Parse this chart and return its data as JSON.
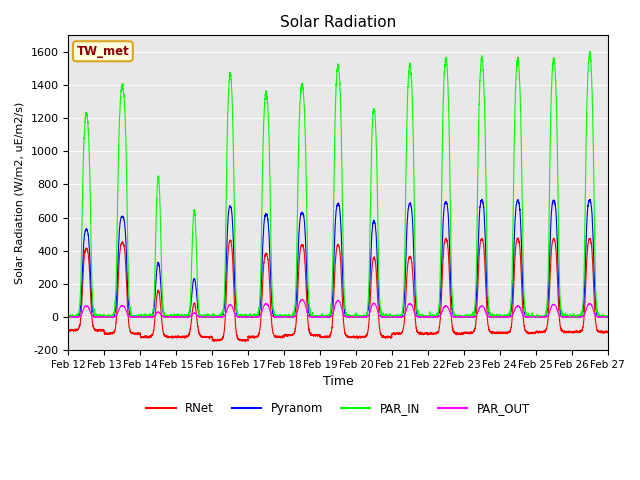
{
  "title": "Solar Radiation",
  "ylabel": "Solar Radiation (W/m2, uE/m2/s)",
  "xlabel": "Time",
  "ylim": [
    -200,
    1700
  ],
  "yticks": [
    -200,
    0,
    200,
    400,
    600,
    800,
    1000,
    1200,
    1400,
    1600
  ],
  "site_label": "TW_met",
  "n_days": 15,
  "pts_per_day": 288,
  "background_color": "#e8e8e8",
  "legend": [
    {
      "label": "RNet",
      "color": "#ff0000"
    },
    {
      "label": "Pyranom",
      "color": "#0000ff"
    },
    {
      "label": "PAR_IN",
      "color": "#00ff00"
    },
    {
      "label": "PAR_OUT",
      "color": "#ff00ff"
    }
  ],
  "xtick_labels": [
    "Feb 12",
    "Feb 13",
    "Feb 14",
    "Feb 15",
    "Feb 16",
    "Feb 17",
    "Feb 18",
    "Feb 19",
    "Feb 20",
    "Feb 21",
    "Feb 22",
    "Feb 23",
    "Feb 24",
    "Feb 25",
    "Feb 26",
    "Feb 27"
  ],
  "par_in_peaks": [
    1230,
    1400,
    850,
    640,
    1470,
    1360,
    1405,
    1520,
    1260,
    1520,
    1560,
    1560,
    1555,
    1560,
    1590
  ],
  "pyranom_peaks": [
    540,
    615,
    360,
    260,
    690,
    635,
    640,
    700,
    600,
    700,
    710,
    720,
    720,
    720,
    720
  ],
  "rnet_peaks": [
    430,
    460,
    200,
    120,
    490,
    400,
    450,
    455,
    385,
    380,
    490,
    490,
    490,
    490,
    490
  ],
  "par_out_peaks": [
    70,
    70,
    35,
    30,
    80,
    85,
    110,
    105,
    90,
    85,
    70,
    70,
    70,
    80,
    85
  ],
  "rnet_night": [
    -80,
    -100,
    -120,
    -120,
    -140,
    -120,
    -110,
    -120,
    -120,
    -100,
    -100,
    -95,
    -95,
    -90,
    -90
  ],
  "day_widths": [
    0.45,
    0.5,
    0.3,
    0.28,
    0.42,
    0.45,
    0.48,
    0.45,
    0.4,
    0.45,
    0.45,
    0.45,
    0.45,
    0.45,
    0.45
  ],
  "figsize": [
    6.4,
    4.8
  ],
  "dpi": 100
}
